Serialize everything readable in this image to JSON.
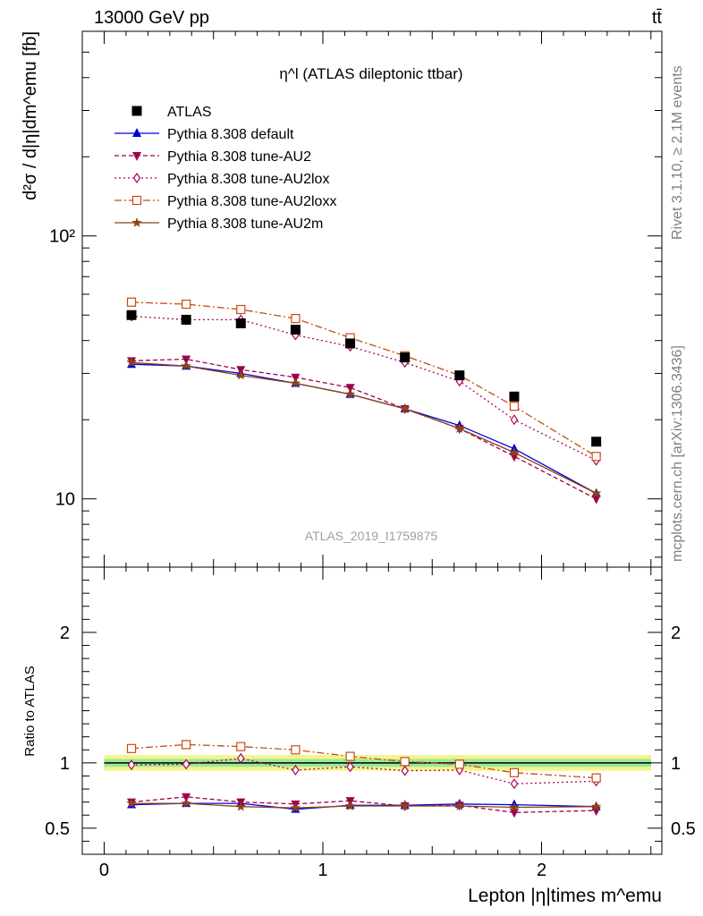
{
  "header": {
    "left_label": "13000 GeV pp",
    "right_label": "tt̄"
  },
  "side_labels": {
    "version": "Rivet 3.1.10, ≥ 2.1M events",
    "source": "mcplots.cern.ch [arXiv:1306.3436]"
  },
  "chart_data": {
    "type": "line",
    "title": "η^l (ATLAS dileptonic ttbar)",
    "analysis_tag": "ATLAS_2019_I1759875",
    "xlabel": "Lepton |η|times m^emu",
    "ylabel": "d²σ / d|η|dm^emu [fb]",
    "ratio_ylabel": "Ratio to ATLAS",
    "xlim": [
      -0.1,
      2.55
    ],
    "ylim": [
      5.5,
      600
    ],
    "y_scale": "log",
    "ratio_ylim": [
      0.3,
      2.5
    ],
    "x_ticks": [
      "0",
      "1",
      "2"
    ],
    "y_ticks": [
      "10",
      "10²"
    ],
    "ratio_ticks": [
      "0.5",
      "1",
      "2"
    ],
    "legend_position": "top-left",
    "x": [
      0.125,
      0.375,
      0.625,
      0.875,
      1.125,
      1.375,
      1.625,
      1.875,
      2.25
    ],
    "data": {
      "name": "ATLAS",
      "values": [
        50,
        48,
        46.5,
        44,
        39,
        34.5,
        29.5,
        24.5,
        16.5
      ],
      "color": "#000000"
    },
    "series": [
      {
        "name": "Pythia 8.308 default",
        "color": "#0000dd",
        "marker": "triangle-up",
        "dash": "solid",
        "values": [
          32.5,
          32,
          30,
          27.5,
          25,
          22,
          19,
          15.5,
          10.5
        ]
      },
      {
        "name": "Pythia 8.308 tune-AU2",
        "color": "#a0004c",
        "marker": "triangle-down",
        "dash": "dashed",
        "values": [
          33.5,
          34,
          31,
          29,
          26.5,
          22,
          18.5,
          14.5,
          10
        ]
      },
      {
        "name": "Pythia 8.308 tune-AU2lox",
        "color": "#b0005a",
        "marker": "diamond-open",
        "dash": "dotted",
        "values": [
          49.5,
          48,
          48,
          42,
          38,
          33,
          28,
          20,
          14
        ]
      },
      {
        "name": "Pythia 8.308 tune-AU2loxx",
        "color": "#c84a10",
        "marker": "square-open",
        "dash": "dashdot",
        "values": [
          56,
          55,
          52.5,
          48.5,
          41,
          35,
          29.5,
          22.5,
          14.5
        ]
      },
      {
        "name": "Pythia 8.308 tune-AU2m",
        "color": "#8b4513",
        "marker": "star",
        "dash": "solid",
        "values": [
          33,
          32,
          29.5,
          27.5,
          25,
          22,
          18.5,
          15,
          10.5
        ]
      }
    ],
    "ratio_band": {
      "inner": [
        0.97,
        1.03
      ],
      "outer": [
        0.94,
        1.06
      ]
    },
    "ratios": [
      {
        "name": "Pythia 8.308 default",
        "values": [
          0.68,
          0.69,
          0.69,
          0.645,
          0.675,
          0.675,
          0.685,
          0.68,
          0.665
        ]
      },
      {
        "name": "Pythia 8.308 tune-AU2",
        "values": [
          0.7,
          0.74,
          0.7,
          0.685,
          0.71,
          0.67,
          0.675,
          0.62,
          0.635
        ]
      },
      {
        "name": "Pythia 8.308 tune-AU2lox",
        "values": [
          0.985,
          0.99,
          1.035,
          0.945,
          0.97,
          0.94,
          0.945,
          0.84,
          0.86
        ]
      },
      {
        "name": "Pythia 8.308 tune-AU2loxx",
        "values": [
          1.11,
          1.14,
          1.125,
          1.1,
          1.05,
          1.01,
          0.99,
          0.925,
          0.885
        ]
      },
      {
        "name": "Pythia 8.308 tune-AU2m",
        "values": [
          0.69,
          0.69,
          0.665,
          0.655,
          0.67,
          0.67,
          0.67,
          0.66,
          0.665
        ]
      }
    ]
  }
}
